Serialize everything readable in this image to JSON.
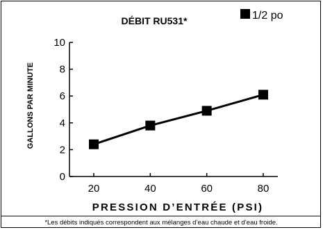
{
  "chart_data": {
    "type": "line",
    "title": "DÉBIT RU531*",
    "xlabel": "PRESSION D’ENTRÉE (PSI)",
    "ylabel": "GALLONS PAR MINUTE",
    "x": [
      20,
      40,
      60,
      80
    ],
    "x_tick_labels": [
      "20",
      "40",
      "60",
      "80"
    ],
    "y_tick_labels": [
      "0",
      "2",
      "4",
      "6",
      "8",
      "10"
    ],
    "y_ticks": [
      0,
      2,
      4,
      6,
      8,
      10
    ],
    "xlim": [
      10,
      87
    ],
    "ylim": [
      0,
      10
    ],
    "grid": false,
    "legend_position": "top-right",
    "series": [
      {
        "name": "1/2 po",
        "values": [
          2.4,
          3.8,
          4.9,
          6.1
        ],
        "color": "#000000",
        "marker": "square"
      }
    ],
    "footnote": "*Les débits indiqués correspondent aux mélanges d’eau chaude et d’eau froide."
  }
}
